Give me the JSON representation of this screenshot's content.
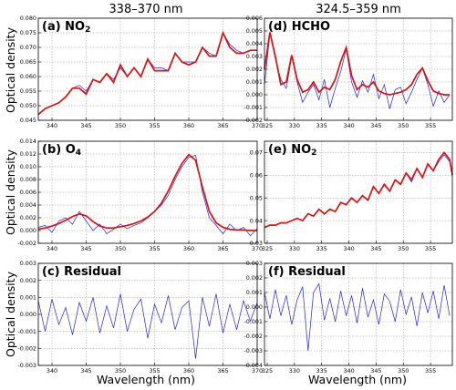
{
  "column_titles": [
    "338–370 nm",
    "324.5–359 nm"
  ],
  "colors": {
    "measured": "#1f1ff5",
    "fit": "#e01010"
  },
  "chart_data": [
    {
      "type": "line",
      "panel": "(a)",
      "title": "(a) NO2",
      "title_parts": {
        "prefix": "(a) NO",
        "sub": "2"
      },
      "xlabel": "",
      "ylabel": "Optical density",
      "xlim": [
        338,
        370
      ],
      "ylim": [
        0.045,
        0.08
      ],
      "xticks": [
        340,
        345,
        350,
        355,
        360,
        365,
        370
      ],
      "yticks": [
        0.045,
        0.05,
        0.055,
        0.06,
        0.065,
        0.07,
        0.075,
        0.08
      ],
      "ytick_decimals": 3,
      "grid": true,
      "series": [
        {
          "role": "measured",
          "x": [
            338,
            339,
            340,
            341,
            342,
            343,
            344,
            345,
            346,
            347,
            348,
            349,
            350,
            351,
            352,
            353,
            354,
            355,
            356,
            357,
            358,
            359,
            360,
            361,
            362,
            363,
            364,
            365,
            366,
            367,
            368,
            369,
            370
          ],
          "y": [
            0.047,
            0.049,
            0.05,
            0.051,
            0.053,
            0.056,
            0.057,
            0.055,
            0.059,
            0.058,
            0.061,
            0.059,
            0.063,
            0.06,
            0.063,
            0.06,
            0.066,
            0.063,
            0.063,
            0.062,
            0.068,
            0.065,
            0.065,
            0.065,
            0.07,
            0.068,
            0.067,
            0.075,
            0.071,
            0.069,
            0.068,
            0.069,
            0.069
          ]
        },
        {
          "role": "fit",
          "x": [
            338,
            339,
            340,
            341,
            342,
            343,
            344,
            345,
            346,
            347,
            348,
            349,
            350,
            351,
            352,
            353,
            354,
            355,
            356,
            357,
            358,
            359,
            360,
            361,
            362,
            363,
            364,
            365,
            366,
            367,
            368,
            369,
            370
          ],
          "y": [
            0.047,
            0.049,
            0.05,
            0.051,
            0.053,
            0.056,
            0.056,
            0.054,
            0.059,
            0.058,
            0.061,
            0.058,
            0.064,
            0.06,
            0.063,
            0.06,
            0.066,
            0.062,
            0.062,
            0.062,
            0.068,
            0.065,
            0.064,
            0.065,
            0.07,
            0.067,
            0.067,
            0.075,
            0.07,
            0.068,
            0.068,
            0.069,
            0.069
          ]
        }
      ]
    },
    {
      "type": "line",
      "panel": "(b)",
      "title": "(b) O4",
      "title_parts": {
        "prefix": "(b) O",
        "sub": "4"
      },
      "xlabel": "",
      "ylabel": "Optical density",
      "xlim": [
        338,
        370
      ],
      "ylim": [
        -0.002,
        0.014
      ],
      "xticks": [
        340,
        345,
        350,
        355,
        360,
        365,
        370
      ],
      "yticks": [
        -0.002,
        0.0,
        0.002,
        0.004,
        0.006,
        0.008,
        0.01,
        0.012,
        0.014
      ],
      "ytick_decimals": 3,
      "grid": true,
      "series": [
        {
          "role": "measured",
          "x": [
            338,
            339,
            340,
            341,
            342,
            343,
            344,
            345,
            346,
            347,
            348,
            349,
            350,
            351,
            352,
            353,
            354,
            355,
            356,
            357,
            358,
            359,
            360,
            361,
            362,
            363,
            364,
            365,
            366,
            367,
            368,
            369,
            370
          ],
          "y": [
            0.0005,
            0.0008,
            -0.0003,
            0.0015,
            0.002,
            0.001,
            0.003,
            0.0015,
            0.0,
            0.001,
            -0.0005,
            0.0002,
            0.001,
            0.0003,
            0.0008,
            0.0012,
            0.002,
            0.003,
            0.004,
            0.0055,
            0.008,
            0.01,
            0.0115,
            0.0118,
            0.006,
            0.002,
            0.0008,
            -0.0005,
            0.001,
            0.0,
            0.0005,
            -0.0008,
            0.0003
          ]
        },
        {
          "role": "fit",
          "x": [
            338,
            339,
            340,
            341,
            342,
            343,
            344,
            345,
            346,
            347,
            348,
            349,
            350,
            351,
            352,
            353,
            354,
            355,
            356,
            357,
            358,
            359,
            360,
            361,
            362,
            363,
            364,
            365,
            366,
            367,
            368,
            369,
            370
          ],
          "y": [
            0.0002,
            0.0004,
            0.0007,
            0.0011,
            0.0016,
            0.0022,
            0.0026,
            0.0023,
            0.0014,
            0.0007,
            0.0004,
            0.0004,
            0.0006,
            0.0008,
            0.0011,
            0.0015,
            0.0021,
            0.003,
            0.0043,
            0.0062,
            0.0085,
            0.0105,
            0.0119,
            0.011,
            0.0068,
            0.003,
            0.0012,
            0.0005,
            0.0002,
            0.0001,
            0.0001,
            0.0,
            0.0
          ]
        }
      ]
    },
    {
      "type": "line",
      "panel": "(c)",
      "title": "(c) Residual",
      "title_parts": {
        "prefix": "(c) Residual",
        "sub": ""
      },
      "xlabel": "Wavelength (nm)",
      "ylabel": "Optical density",
      "xlim": [
        338,
        370
      ],
      "ylim": [
        -0.003,
        0.003
      ],
      "xticks": [
        340,
        345,
        350,
        355,
        360,
        365,
        370
      ],
      "yticks": [
        -0.003,
        -0.002,
        -0.001,
        0.0,
        0.001,
        0.002,
        0.003
      ],
      "ytick_decimals": 3,
      "grid": true,
      "series": [
        {
          "role": "measured",
          "x": [
            338,
            339,
            340,
            341,
            342,
            343,
            344,
            345,
            346,
            347,
            348,
            349,
            350,
            351,
            352,
            353,
            354,
            355,
            356,
            357,
            358,
            359,
            360,
            361,
            362,
            363,
            364,
            365,
            366,
            367,
            368,
            369,
            370
          ],
          "y": [
            0.0008,
            -0.001,
            0.0009,
            -0.0006,
            0.0004,
            -0.0012,
            0.0007,
            -0.0004,
            0.001,
            -0.0011,
            0.0005,
            -0.0008,
            0.0012,
            -0.001,
            0.0003,
            0.0009,
            -0.0014,
            0.0006,
            -0.0005,
            0.0011,
            -0.0009,
            0.0004,
            0.0008,
            -0.0026,
            0.001,
            -0.0007,
            0.0012,
            -0.0011,
            0.0006,
            -0.0009,
            0.0008,
            -0.0004,
            0.0007
          ]
        }
      ]
    },
    {
      "type": "line",
      "panel": "(d)",
      "title": "(d) HCHO",
      "title_parts": {
        "prefix": "(d) HCHO",
        "sub": ""
      },
      "xlabel": "",
      "ylabel": "",
      "xlim": [
        324.5,
        359
      ],
      "ylim": [
        -0.002,
        0.006
      ],
      "xticks": [
        325,
        330,
        335,
        340,
        345,
        350,
        355
      ],
      "yticks": [
        -0.002,
        -0.001,
        0.0,
        0.001,
        0.002,
        0.003,
        0.004,
        0.005,
        0.006
      ],
      "ytick_decimals": 3,
      "grid": true,
      "series": [
        {
          "role": "measured",
          "x": [
            324.5,
            325.5,
            326.5,
            327.5,
            328.5,
            329.5,
            330.5,
            331.5,
            332.5,
            333.5,
            334.5,
            335.5,
            336.5,
            337.5,
            338.5,
            339.5,
            340.5,
            341.5,
            342.5,
            343.5,
            344.5,
            345.5,
            346.5,
            347.5,
            348.5,
            349.5,
            350.5,
            351.5,
            352.5,
            353.5,
            354.5,
            355.5,
            356.5,
            357.5,
            358.5
          ],
          "y": [
            0.0008,
            0.0048,
            0.0028,
            0.0012,
            0.0005,
            0.003,
            0.001,
            -0.0006,
            0.0002,
            0.0008,
            -0.0004,
            0.0012,
            -0.001,
            0.0005,
            0.0018,
            0.0036,
            0.001,
            -0.0002,
            0.0011,
            0.0002,
            0.0016,
            -0.0003,
            0.0008,
            -0.0011,
            0.0004,
            0.0006,
            -0.0007,
            0.0002,
            0.0012,
            0.0021,
            0.0008,
            -0.0009,
            0.0003,
            -0.0006,
            0.0
          ]
        },
        {
          "role": "fit",
          "x": [
            324.5,
            325.5,
            326.5,
            327.5,
            328.5,
            329.5,
            330.5,
            331.5,
            332.5,
            333.5,
            334.5,
            335.5,
            336.5,
            337.5,
            338.5,
            339.5,
            340.5,
            341.5,
            342.5,
            343.5,
            344.5,
            345.5,
            346.5,
            347.5,
            348.5,
            349.5,
            350.5,
            351.5,
            352.5,
            353.5,
            354.5,
            355.5,
            356.5,
            357.5,
            358.5
          ],
          "y": [
            0.002,
            0.0049,
            0.003,
            0.0008,
            0.001,
            0.0031,
            0.0012,
            0.0002,
            0.0004,
            0.001,
            0.0002,
            0.0006,
            0.0004,
            0.0012,
            0.0026,
            0.0037,
            0.0015,
            0.0004,
            0.0008,
            0.0006,
            0.001,
            0.0003,
            0.0001,
            0.0,
            0.0001,
            0.0002,
            0.0004,
            0.0008,
            0.0016,
            0.0021,
            0.0011,
            0.0003,
            0.0001,
            0.0,
            0.0
          ]
        }
      ]
    },
    {
      "type": "line",
      "panel": "(e)",
      "title": "(e) NO2",
      "title_parts": {
        "prefix": "(e) NO",
        "sub": "2"
      },
      "xlabel": "",
      "ylabel": "",
      "xlim": [
        324.5,
        359
      ],
      "ylim": [
        0.03,
        0.075
      ],
      "xticks": [
        325,
        330,
        335,
        340,
        345,
        350,
        355
      ],
      "yticks": [
        0.03,
        0.04,
        0.05,
        0.06,
        0.07
      ],
      "ytick_decimals": 2,
      "grid": true,
      "series": [
        {
          "role": "measured",
          "x": [
            324.5,
            325.5,
            326.5,
            327.5,
            328.5,
            329.5,
            330.5,
            331.5,
            332.5,
            333.5,
            334.5,
            335.5,
            336.5,
            337.5,
            338.5,
            339.5,
            340.5,
            341.5,
            342.5,
            343.5,
            344.5,
            345.5,
            346.5,
            347.5,
            348.5,
            349.5,
            350.5,
            351.5,
            352.5,
            353.5,
            354.5,
            355.5,
            356.5,
            357.5,
            358.5,
            359
          ],
          "y": [
            0.037,
            0.038,
            0.038,
            0.039,
            0.039,
            0.04,
            0.041,
            0.04,
            0.043,
            0.042,
            0.045,
            0.043,
            0.045,
            0.044,
            0.048,
            0.047,
            0.05,
            0.048,
            0.051,
            0.049,
            0.055,
            0.052,
            0.056,
            0.053,
            0.058,
            0.056,
            0.061,
            0.057,
            0.063,
            0.059,
            0.065,
            0.062,
            0.066,
            0.069,
            0.066,
            0.06
          ]
        },
        {
          "role": "fit",
          "x": [
            324.5,
            325.5,
            326.5,
            327.5,
            328.5,
            329.5,
            330.5,
            331.5,
            332.5,
            333.5,
            334.5,
            335.5,
            336.5,
            337.5,
            338.5,
            339.5,
            340.5,
            341.5,
            342.5,
            343.5,
            344.5,
            345.5,
            346.5,
            347.5,
            348.5,
            349.5,
            350.5,
            351.5,
            352.5,
            353.5,
            354.5,
            355.5,
            356.5,
            357.5,
            358.5,
            359
          ],
          "y": [
            0.037,
            0.038,
            0.038,
            0.039,
            0.039,
            0.04,
            0.041,
            0.04,
            0.043,
            0.042,
            0.045,
            0.043,
            0.045,
            0.044,
            0.048,
            0.047,
            0.05,
            0.048,
            0.051,
            0.049,
            0.055,
            0.052,
            0.056,
            0.053,
            0.058,
            0.056,
            0.061,
            0.058,
            0.063,
            0.059,
            0.065,
            0.062,
            0.067,
            0.07,
            0.067,
            0.06
          ]
        }
      ]
    },
    {
      "type": "line",
      "panel": "(f)",
      "title": "(f) Residual",
      "title_parts": {
        "prefix": "(f) Residual",
        "sub": ""
      },
      "xlabel": "Wavelength (nm)",
      "ylabel": "",
      "xlim": [
        324.5,
        359
      ],
      "ylim": [
        -0.004,
        0.003
      ],
      "xticks": [
        325,
        330,
        335,
        340,
        345,
        350,
        355
      ],
      "yticks": [
        -0.004,
        -0.003,
        -0.002,
        -0.001,
        0.0,
        0.001,
        0.002,
        0.003
      ],
      "ytick_decimals": 3,
      "grid": true,
      "series": [
        {
          "role": "measured",
          "x": [
            324.5,
            325.5,
            326.5,
            327.5,
            328.5,
            329.5,
            330.5,
            331.5,
            332.5,
            333.5,
            334.5,
            335.5,
            336.5,
            337.5,
            338.5,
            339.5,
            340.5,
            341.5,
            342.5,
            343.5,
            344.5,
            345.5,
            346.5,
            347.5,
            348.5,
            349.5,
            350.5,
            351.5,
            352.5,
            353.5,
            354.5,
            355.5,
            356.5,
            357.5,
            358.5
          ],
          "y": [
            0.001,
            -0.0008,
            0.0012,
            -0.0006,
            0.0008,
            -0.0012,
            0.0005,
            0.0014,
            -0.003,
            0.001,
            0.0016,
            -0.0009,
            0.0006,
            -0.001,
            0.0011,
            -0.0006,
            0.0008,
            -0.0011,
            0.0013,
            -0.0007,
            0.0005,
            -0.0012,
            0.0009,
            0.0004,
            -0.001,
            0.0012,
            -0.0005,
            0.0007,
            -0.0013,
            0.001,
            -0.0004,
            0.0011,
            -0.0008,
            0.0015,
            -0.0006
          ]
        }
      ]
    }
  ]
}
